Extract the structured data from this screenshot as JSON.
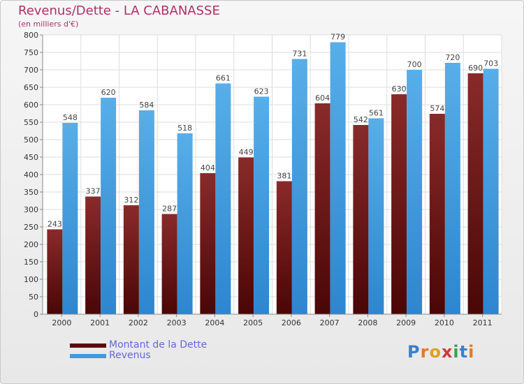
{
  "header": {
    "title": "Revenus/Dette - LA CABANASSE",
    "subtitle": "(en milliers d'€)"
  },
  "chart_data": {
    "type": "bar",
    "title": "Revenus/Dette - LA CABANASSE",
    "ylabel": "(en milliers d'€)",
    "categories": [
      "2000",
      "2001",
      "2002",
      "2003",
      "2004",
      "2005",
      "2006",
      "2007",
      "2008",
      "2009",
      "2010",
      "2011"
    ],
    "series": [
      {
        "name": "Montant de la Dette",
        "color": "#7a1a1a",
        "values": [
          243,
          337,
          312,
          287,
          404,
          449,
          381,
          604,
          542,
          630,
          574,
          690
        ]
      },
      {
        "name": "Revenus",
        "color": "#3d9be0",
        "values": [
          548,
          620,
          584,
          518,
          661,
          623,
          731,
          779,
          561,
          700,
          720,
          703
        ]
      }
    ],
    "ylim": [
      0,
      800
    ],
    "yticks": [
      0,
      50,
      100,
      150,
      200,
      250,
      300,
      350,
      400,
      450,
      500,
      550,
      600,
      650,
      700,
      750,
      800
    ],
    "grid": true,
    "legend_position": "bottom-left"
  },
  "legend": {
    "items": [
      {
        "label": "Montant de la Dette",
        "color": "#5a0a0a"
      },
      {
        "label": "Revenus",
        "color": "#3d9be0"
      }
    ]
  },
  "logo": {
    "letters": [
      {
        "ch": "P",
        "color": "#3a7fd0"
      },
      {
        "ch": "r",
        "color": "#e07a2a"
      },
      {
        "ch": "o",
        "color": "#e0a020"
      },
      {
        "ch": "x",
        "color": "#d03a3a"
      },
      {
        "ch": "i",
        "color": "#3aa050"
      },
      {
        "ch": "t",
        "color": "#3a7fd0"
      },
      {
        "ch": "i",
        "color": "#e07a2a"
      }
    ]
  }
}
